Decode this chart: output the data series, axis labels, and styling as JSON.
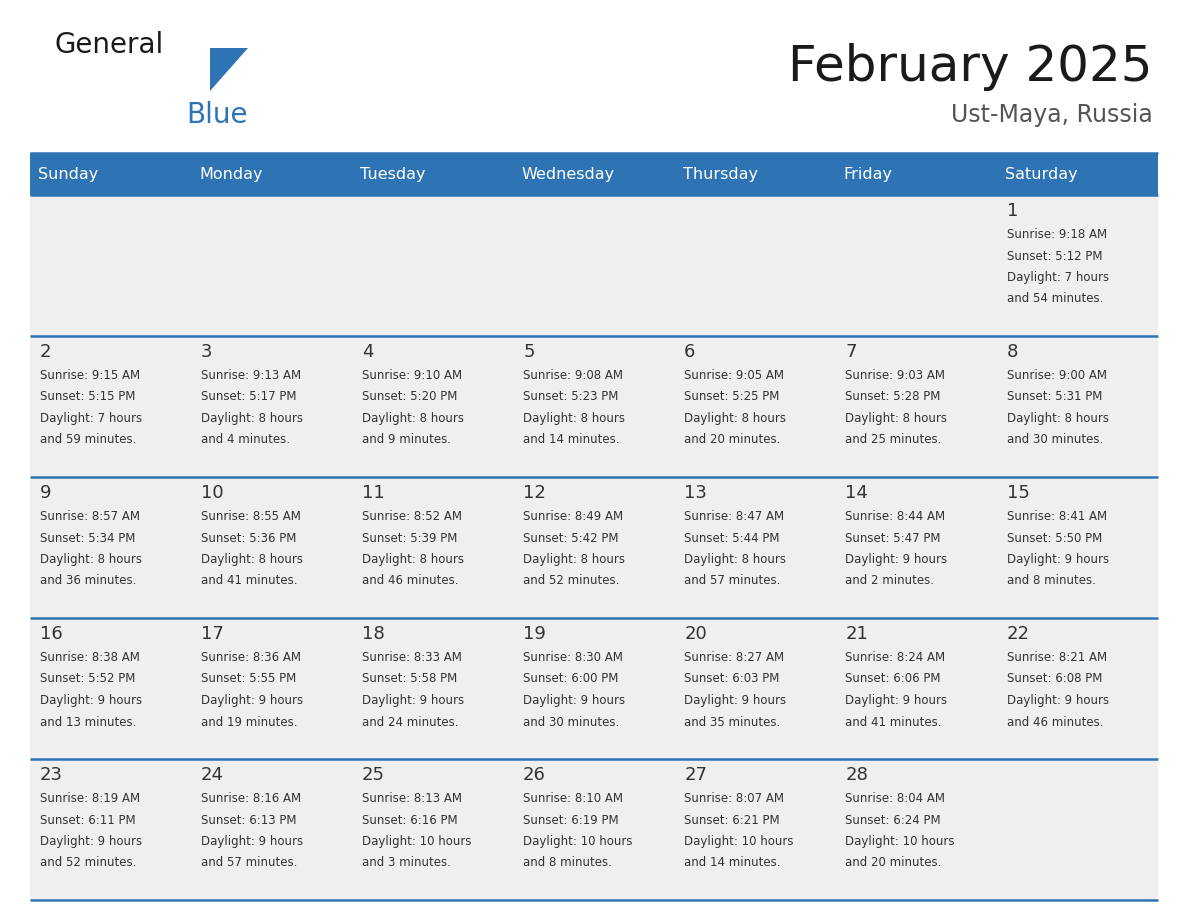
{
  "title": "February 2025",
  "subtitle": "Ust-Maya, Russia",
  "days_of_week": [
    "Sunday",
    "Monday",
    "Tuesday",
    "Wednesday",
    "Thursday",
    "Friday",
    "Saturday"
  ],
  "header_bg": "#2E74B5",
  "header_text": "#FFFFFF",
  "cell_bg": "#EFEFEF",
  "day_number_color": "#333333",
  "text_color": "#333333",
  "line_color": "#2E74B5",
  "logo_general_color": "#1a1a1a",
  "logo_blue_color": "#2E74B5",
  "calendar_data": [
    [
      {
        "day": null,
        "info": null
      },
      {
        "day": null,
        "info": null
      },
      {
        "day": null,
        "info": null
      },
      {
        "day": null,
        "info": null
      },
      {
        "day": null,
        "info": null
      },
      {
        "day": null,
        "info": null
      },
      {
        "day": 1,
        "info": "Sunrise: 9:18 AM\nSunset: 5:12 PM\nDaylight: 7 hours\nand 54 minutes."
      }
    ],
    [
      {
        "day": 2,
        "info": "Sunrise: 9:15 AM\nSunset: 5:15 PM\nDaylight: 7 hours\nand 59 minutes."
      },
      {
        "day": 3,
        "info": "Sunrise: 9:13 AM\nSunset: 5:17 PM\nDaylight: 8 hours\nand 4 minutes."
      },
      {
        "day": 4,
        "info": "Sunrise: 9:10 AM\nSunset: 5:20 PM\nDaylight: 8 hours\nand 9 minutes."
      },
      {
        "day": 5,
        "info": "Sunrise: 9:08 AM\nSunset: 5:23 PM\nDaylight: 8 hours\nand 14 minutes."
      },
      {
        "day": 6,
        "info": "Sunrise: 9:05 AM\nSunset: 5:25 PM\nDaylight: 8 hours\nand 20 minutes."
      },
      {
        "day": 7,
        "info": "Sunrise: 9:03 AM\nSunset: 5:28 PM\nDaylight: 8 hours\nand 25 minutes."
      },
      {
        "day": 8,
        "info": "Sunrise: 9:00 AM\nSunset: 5:31 PM\nDaylight: 8 hours\nand 30 minutes."
      }
    ],
    [
      {
        "day": 9,
        "info": "Sunrise: 8:57 AM\nSunset: 5:34 PM\nDaylight: 8 hours\nand 36 minutes."
      },
      {
        "day": 10,
        "info": "Sunrise: 8:55 AM\nSunset: 5:36 PM\nDaylight: 8 hours\nand 41 minutes."
      },
      {
        "day": 11,
        "info": "Sunrise: 8:52 AM\nSunset: 5:39 PM\nDaylight: 8 hours\nand 46 minutes."
      },
      {
        "day": 12,
        "info": "Sunrise: 8:49 AM\nSunset: 5:42 PM\nDaylight: 8 hours\nand 52 minutes."
      },
      {
        "day": 13,
        "info": "Sunrise: 8:47 AM\nSunset: 5:44 PM\nDaylight: 8 hours\nand 57 minutes."
      },
      {
        "day": 14,
        "info": "Sunrise: 8:44 AM\nSunset: 5:47 PM\nDaylight: 9 hours\nand 2 minutes."
      },
      {
        "day": 15,
        "info": "Sunrise: 8:41 AM\nSunset: 5:50 PM\nDaylight: 9 hours\nand 8 minutes."
      }
    ],
    [
      {
        "day": 16,
        "info": "Sunrise: 8:38 AM\nSunset: 5:52 PM\nDaylight: 9 hours\nand 13 minutes."
      },
      {
        "day": 17,
        "info": "Sunrise: 8:36 AM\nSunset: 5:55 PM\nDaylight: 9 hours\nand 19 minutes."
      },
      {
        "day": 18,
        "info": "Sunrise: 8:33 AM\nSunset: 5:58 PM\nDaylight: 9 hours\nand 24 minutes."
      },
      {
        "day": 19,
        "info": "Sunrise: 8:30 AM\nSunset: 6:00 PM\nDaylight: 9 hours\nand 30 minutes."
      },
      {
        "day": 20,
        "info": "Sunrise: 8:27 AM\nSunset: 6:03 PM\nDaylight: 9 hours\nand 35 minutes."
      },
      {
        "day": 21,
        "info": "Sunrise: 8:24 AM\nSunset: 6:06 PM\nDaylight: 9 hours\nand 41 minutes."
      },
      {
        "day": 22,
        "info": "Sunrise: 8:21 AM\nSunset: 6:08 PM\nDaylight: 9 hours\nand 46 minutes."
      }
    ],
    [
      {
        "day": 23,
        "info": "Sunrise: 8:19 AM\nSunset: 6:11 PM\nDaylight: 9 hours\nand 52 minutes."
      },
      {
        "day": 24,
        "info": "Sunrise: 8:16 AM\nSunset: 6:13 PM\nDaylight: 9 hours\nand 57 minutes."
      },
      {
        "day": 25,
        "info": "Sunrise: 8:13 AM\nSunset: 6:16 PM\nDaylight: 10 hours\nand 3 minutes."
      },
      {
        "day": 26,
        "info": "Sunrise: 8:10 AM\nSunset: 6:19 PM\nDaylight: 10 hours\nand 8 minutes."
      },
      {
        "day": 27,
        "info": "Sunrise: 8:07 AM\nSunset: 6:21 PM\nDaylight: 10 hours\nand 14 minutes."
      },
      {
        "day": 28,
        "info": "Sunrise: 8:04 AM\nSunset: 6:24 PM\nDaylight: 10 hours\nand 20 minutes."
      },
      {
        "day": null,
        "info": null
      }
    ]
  ]
}
